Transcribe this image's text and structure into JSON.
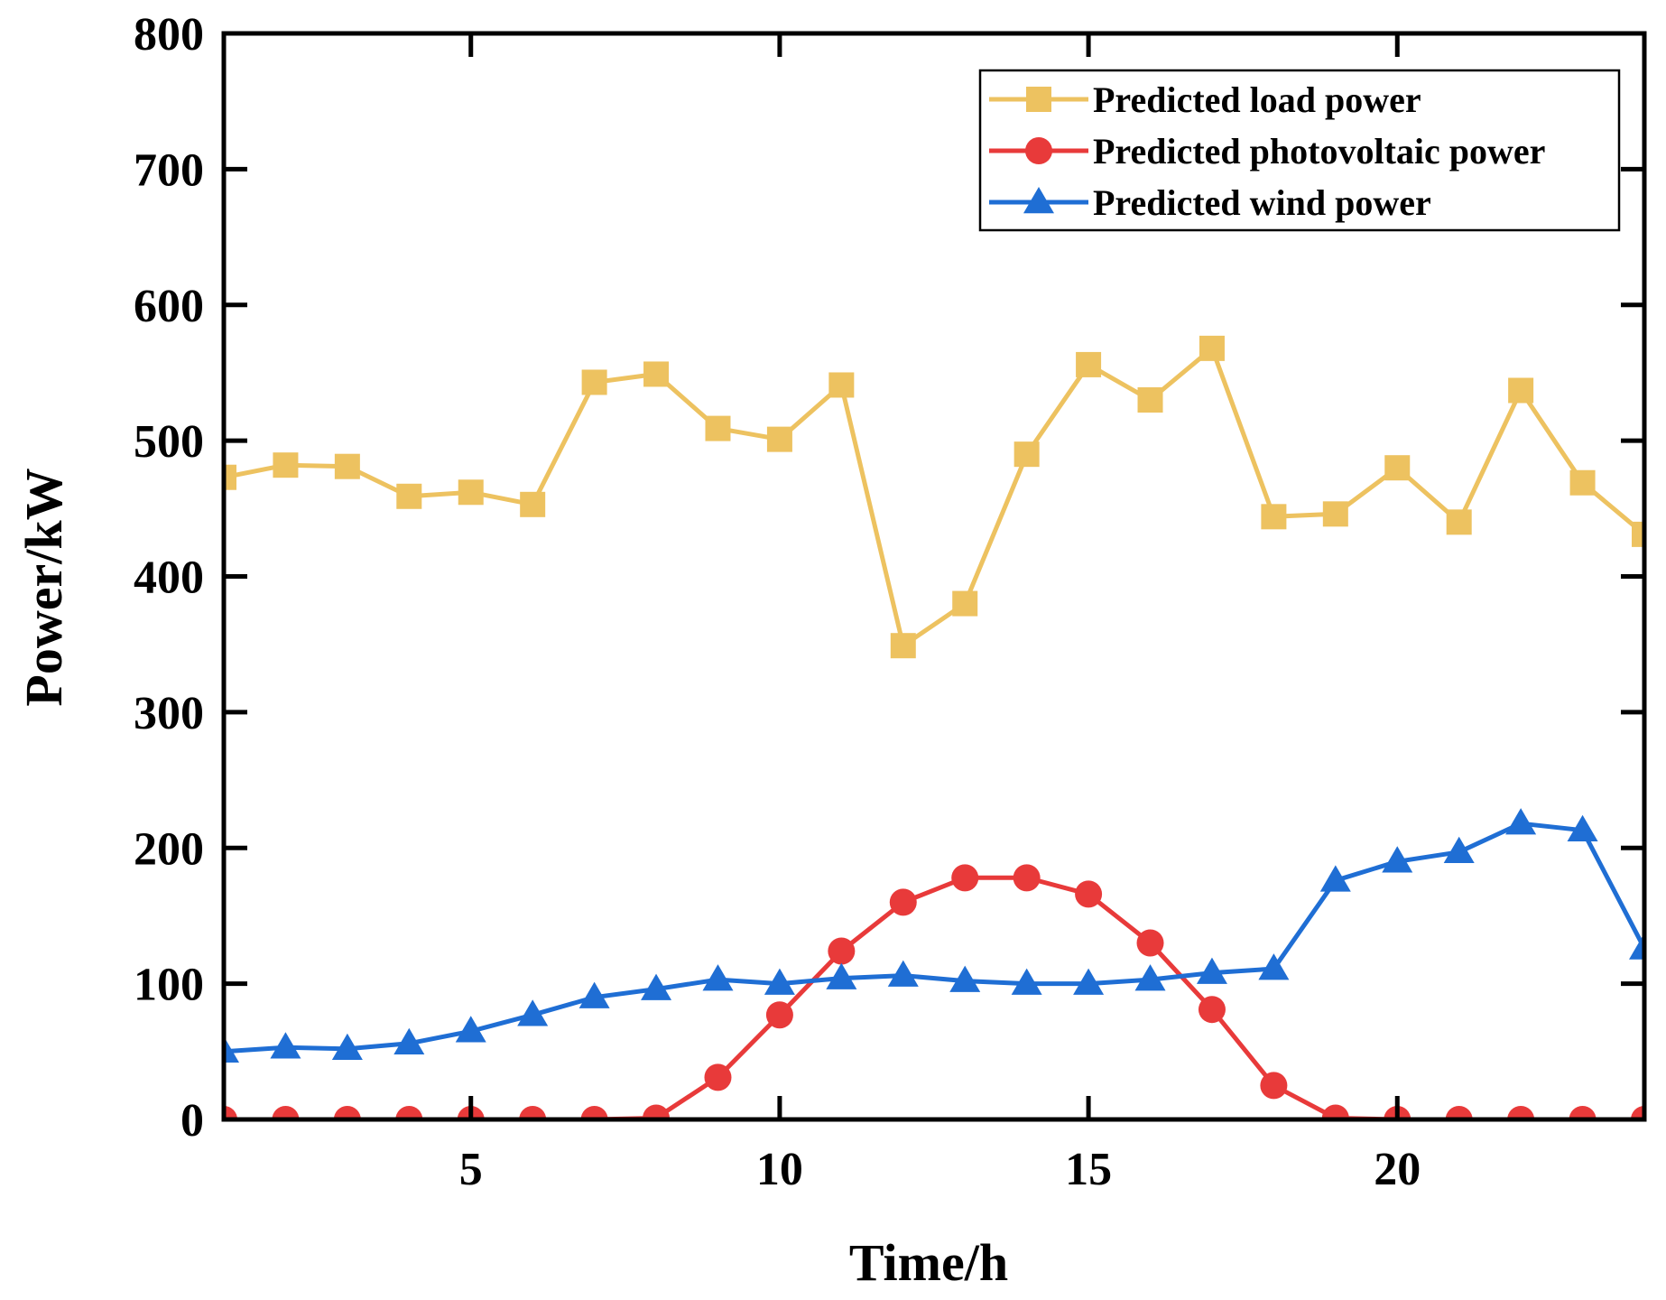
{
  "chart_data": {
    "type": "line",
    "title": "",
    "xlabel": "Time/h",
    "ylabel": "Power/kW",
    "xlim": [
      1,
      24
    ],
    "ylim": [
      0,
      800
    ],
    "xticks": [
      5,
      10,
      15,
      20
    ],
    "yticks": [
      0,
      100,
      200,
      300,
      400,
      500,
      600,
      700,
      800
    ],
    "grid": false,
    "legend_position": "top-right",
    "x": [
      1,
      2,
      3,
      4,
      5,
      6,
      7,
      8,
      9,
      10,
      11,
      12,
      13,
      14,
      15,
      16,
      17,
      18,
      19,
      20,
      21,
      22,
      23,
      24
    ],
    "series": [
      {
        "name": "Predicted load power",
        "color": "#EDC260",
        "marker": "square",
        "values": [
          473,
          482,
          481,
          459,
          462,
          453,
          543,
          549,
          509,
          501,
          541,
          349,
          380,
          490,
          556,
          530,
          568,
          444,
          446,
          480,
          440,
          537,
          469,
          431
        ]
      },
      {
        "name": "Predicted photovoltaic power",
        "color": "#E83A3A",
        "marker": "circle",
        "values": [
          0,
          0,
          0,
          0,
          0,
          0,
          0,
          1,
          31,
          77,
          124,
          160,
          178,
          178,
          166,
          130,
          81,
          25,
          1,
          0,
          0,
          0,
          0,
          0
        ]
      },
      {
        "name": "Predicted wind power",
        "color": "#1F6ED4",
        "marker": "triangle",
        "values": [
          50,
          53,
          52,
          56,
          65,
          77,
          90,
          96,
          103,
          100,
          104,
          106,
          102,
          100,
          100,
          103,
          108,
          111,
          176,
          190,
          197,
          218,
          213,
          126
        ]
      }
    ]
  }
}
